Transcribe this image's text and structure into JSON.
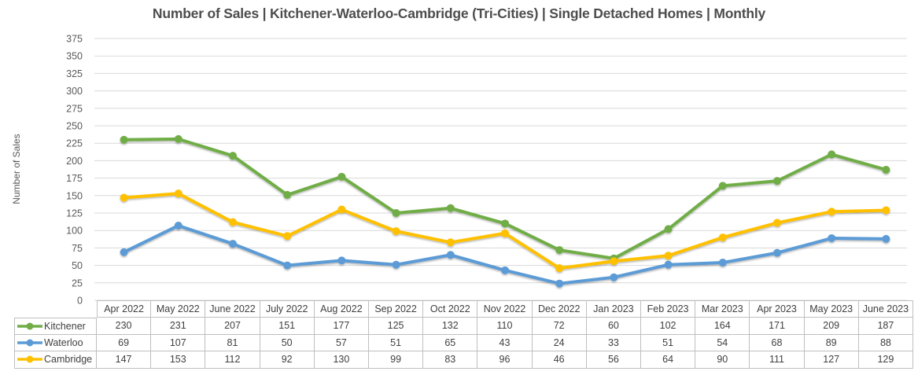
{
  "chart_data": {
    "type": "line",
    "title": "Number of Sales | Kitchener-Waterloo-Cambridge (Tri-Cities) | Single Detached Homes | Monthly",
    "xlabel": "",
    "ylabel": "Number of Sales",
    "ylim": [
      0,
      375
    ],
    "ytick_step": 25,
    "grid": true,
    "legend_position": "data-table-left",
    "categories": [
      "Apr 2022",
      "May 2022",
      "June 2022",
      "July 2022",
      "Aug 2022",
      "Sep 2022",
      "Oct 2022",
      "Nov 2022",
      "Dec 2022",
      "Jan 2023",
      "Feb 2023",
      "Mar 2023",
      "Apr 2023",
      "May 2023",
      "June 2023"
    ],
    "series": [
      {
        "name": "Kitchener",
        "color": "#70AD47",
        "values": [
          230,
          231,
          207,
          151,
          177,
          125,
          132,
          110,
          72,
          60,
          102,
          164,
          171,
          209,
          187
        ]
      },
      {
        "name": "Waterloo",
        "color": "#5B9BD5",
        "values": [
          69,
          107,
          81,
          50,
          57,
          51,
          65,
          43,
          24,
          33,
          51,
          54,
          68,
          89,
          88
        ]
      },
      {
        "name": "Cambridge",
        "color": "#FFC000",
        "values": [
          147,
          153,
          112,
          92,
          130,
          99,
          83,
          96,
          46,
          56,
          64,
          90,
          111,
          127,
          129
        ]
      }
    ],
    "colors": {
      "gridline": "#d9d9d9",
      "axis_text": "#595959",
      "table_border": "#bfbfbf",
      "table_text": "#404040",
      "title_text": "#4d4d4d"
    }
  }
}
